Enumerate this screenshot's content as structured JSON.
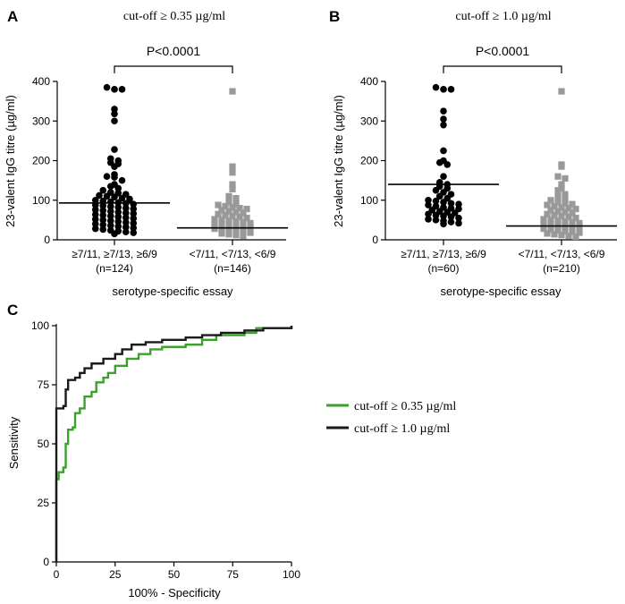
{
  "colors": {
    "black_points": "#000000",
    "gray_points": "#999999",
    "green": "#3aa12a",
    "dark": "#1a1a1a"
  },
  "chart_data": [
    {
      "panel": "A",
      "type": "scatter",
      "title": "cut-off ≥ 0.35 µg/ml",
      "ylabel": "23-valent IgG titre (µg/ml)",
      "xlabel": "serotype-specific essay",
      "ylim": [
        0,
        400
      ],
      "yticks": [
        "0",
        "100",
        "200",
        "300",
        "400"
      ],
      "significance": "P<0.0001",
      "groups": [
        {
          "label": "≥7/11, ≥7/13, ≥6/9",
          "n": "(n=124)",
          "marker": "circle",
          "median": 93,
          "values": [
            385,
            380,
            380,
            330,
            318,
            300,
            228,
            205,
            200,
            195,
            192,
            185,
            165,
            160,
            158,
            150,
            140,
            135,
            130,
            125,
            120,
            118,
            115,
            112,
            110,
            108,
            105,
            103,
            100,
            98,
            96,
            94,
            92,
            90,
            88,
            86,
            84,
            82,
            80,
            78,
            76,
            74,
            72,
            70,
            68,
            66,
            64,
            62,
            60,
            58,
            56,
            54,
            52,
            50,
            48,
            46,
            44,
            42,
            40,
            38,
            36,
            34,
            32,
            30,
            28,
            26,
            24,
            22,
            20,
            18,
            15
          ]
        },
        {
          "label": "<7/11, <7/13, <6/9",
          "n": "(n=146)",
          "marker": "square",
          "median": 30,
          "values": [
            375,
            185,
            170,
            140,
            128,
            110,
            105,
            95,
            90,
            88,
            85,
            82,
            80,
            78,
            75,
            72,
            70,
            68,
            65,
            62,
            60,
            58,
            55,
            52,
            50,
            48,
            46,
            44,
            42,
            40,
            38,
            36,
            34,
            32,
            30,
            28,
            26,
            24,
            22,
            20,
            18,
            16,
            14,
            12,
            10
          ]
        }
      ]
    },
    {
      "panel": "B",
      "type": "scatter",
      "title": "cut-off ≥ 1.0 µg/ml",
      "ylabel": "23-valent IgG titre (µg/ml)",
      "xlabel": "serotype-specific essay",
      "ylim": [
        0,
        400
      ],
      "yticks": [
        "0",
        "100",
        "200",
        "300",
        "400"
      ],
      "significance": "P<0.0001",
      "groups": [
        {
          "label": "≥7/11, ≥7/13, ≥6/9",
          "n": "(n=60)",
          "marker": "circle",
          "median": 140,
          "values": [
            385,
            380,
            380,
            325,
            305,
            290,
            225,
            200,
            195,
            190,
            160,
            145,
            140,
            135,
            130,
            125,
            120,
            115,
            110,
            105,
            100,
            98,
            95,
            92,
            90,
            88,
            85,
            82,
            80,
            78,
            75,
            72,
            70,
            68,
            65,
            62,
            60,
            58,
            55,
            52,
            50,
            48,
            45,
            42,
            40
          ]
        },
        {
          "label": "<7/11, <7/13, <6/9",
          "n": "(n=210)",
          "marker": "square",
          "median": 35,
          "values": [
            375,
            190,
            185,
            160,
            155,
            140,
            130,
            125,
            115,
            110,
            105,
            100,
            95,
            92,
            90,
            88,
            85,
            82,
            80,
            78,
            75,
            72,
            70,
            68,
            65,
            62,
            60,
            58,
            55,
            52,
            50,
            48,
            46,
            44,
            42,
            40,
            38,
            36,
            34,
            32,
            30,
            28,
            26,
            24,
            22,
            20,
            18,
            16,
            14,
            12,
            10,
            8
          ]
        }
      ]
    },
    {
      "panel": "C",
      "type": "line",
      "xlabel": "100% - Specificity",
      "ylabel": "Sensitivity",
      "xlim": [
        0,
        100
      ],
      "ylim": [
        0,
        100
      ],
      "xticks": [
        "0",
        "25",
        "50",
        "75",
        "100"
      ],
      "yticks": [
        "0",
        "25",
        "50",
        "75",
        "100"
      ],
      "series": [
        {
          "name": "cut-off ≥ 0.35 µg/ml",
          "color": "#3aa12a",
          "points": [
            [
              0,
              0
            ],
            [
              0,
              35
            ],
            [
              1,
              38
            ],
            [
              3,
              40
            ],
            [
              4,
              50
            ],
            [
              5,
              56
            ],
            [
              7,
              57
            ],
            [
              8,
              63
            ],
            [
              10,
              65
            ],
            [
              12,
              70
            ],
            [
              15,
              72
            ],
            [
              17,
              76
            ],
            [
              20,
              78
            ],
            [
              22,
              80
            ],
            [
              25,
              83
            ],
            [
              30,
              86
            ],
            [
              35,
              88
            ],
            [
              40,
              90
            ],
            [
              45,
              91
            ],
            [
              55,
              92
            ],
            [
              62,
              94
            ],
            [
              68,
              96
            ],
            [
              80,
              97
            ],
            [
              85,
              99
            ],
            [
              100,
              100
            ]
          ]
        },
        {
          "name": "cut-off ≥ 1.0 µg/ml",
          "color": "#1a1a1a",
          "points": [
            [
              0,
              0
            ],
            [
              0,
              65
            ],
            [
              3,
              66
            ],
            [
              4,
              73
            ],
            [
              5,
              77
            ],
            [
              8,
              78
            ],
            [
              10,
              80
            ],
            [
              12,
              82
            ],
            [
              15,
              84
            ],
            [
              20,
              86
            ],
            [
              25,
              88
            ],
            [
              28,
              90
            ],
            [
              32,
              92
            ],
            [
              38,
              93
            ],
            [
              45,
              94
            ],
            [
              55,
              95
            ],
            [
              62,
              96
            ],
            [
              70,
              97
            ],
            [
              80,
              98
            ],
            [
              88,
              99
            ],
            [
              100,
              100
            ]
          ]
        }
      ]
    }
  ]
}
